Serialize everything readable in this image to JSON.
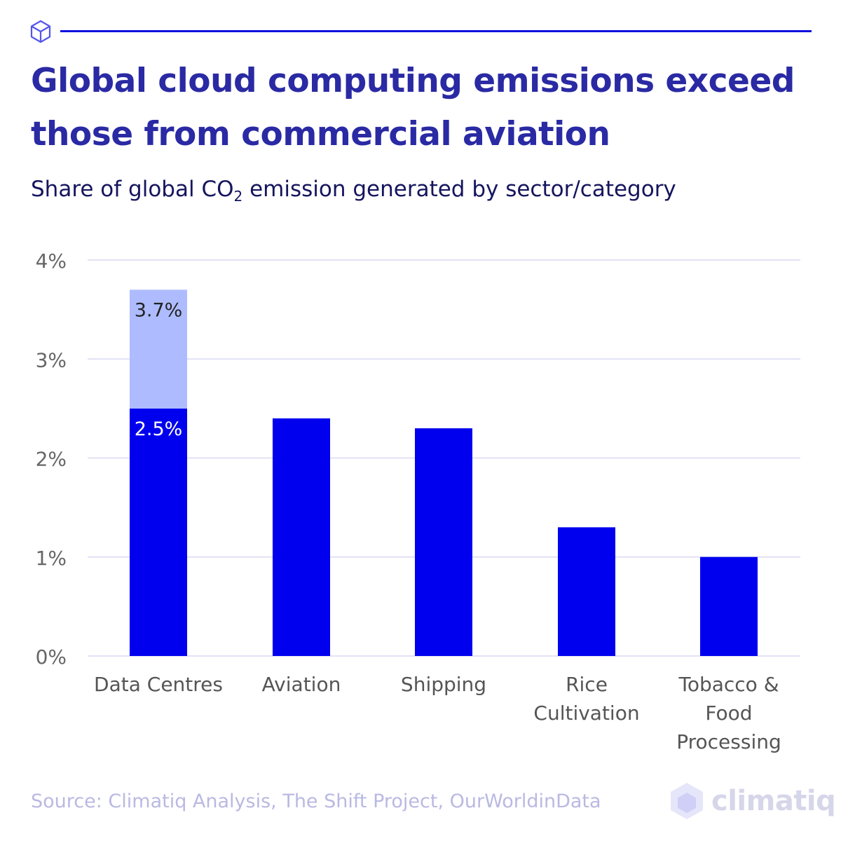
{
  "header": {
    "title": "Global cloud computing emissions exceed those from commercial aviation",
    "subtitle_pre": "Share of global CO",
    "subtitle_sub": "2",
    "subtitle_post": " emission generated by sector/category"
  },
  "chart_data": {
    "type": "bar",
    "stacked": true,
    "categories": [
      "Data Centres",
      "Aviation",
      "Shipping",
      "Rice Cultivation",
      "Tobacco & Food Processing"
    ],
    "category_lines": [
      [
        "Data Centres"
      ],
      [
        "Aviation"
      ],
      [
        "Shipping"
      ],
      [
        "Rice",
        "Cultivation"
      ],
      [
        "Tobacco &",
        "Food",
        "Processing"
      ]
    ],
    "series": [
      {
        "values": [
          2.5,
          2.4,
          2.3,
          1.3,
          1.0
        ],
        "color": "#0000ee"
      },
      {
        "values": [
          1.2,
          0,
          0,
          0,
          0
        ],
        "color": "#aebcff"
      }
    ],
    "data_labels": [
      {
        "category": "Data Centres",
        "text": "2.5%",
        "value": 2.5,
        "color": "#ffffff"
      },
      {
        "category": "Data Centres",
        "text": "3.7%",
        "value": 3.7,
        "color": "#222222"
      }
    ],
    "yticks": [
      0,
      1,
      2,
      3,
      4
    ],
    "ytick_labels": [
      "0%",
      "1%",
      "2%",
      "3%",
      "4%"
    ],
    "ylim": [
      0,
      4
    ],
    "grid": true,
    "xlabel": "",
    "ylabel": ""
  },
  "footer": {
    "source": "Source: Climatiq Analysis, The Shift Project, OurWorldinData",
    "logo": "climatiq"
  },
  "colors": {
    "title": "#2a2aa4",
    "accent": "#0000ee",
    "light_bar": "#aebcff",
    "grid": "#d9d9f2"
  }
}
